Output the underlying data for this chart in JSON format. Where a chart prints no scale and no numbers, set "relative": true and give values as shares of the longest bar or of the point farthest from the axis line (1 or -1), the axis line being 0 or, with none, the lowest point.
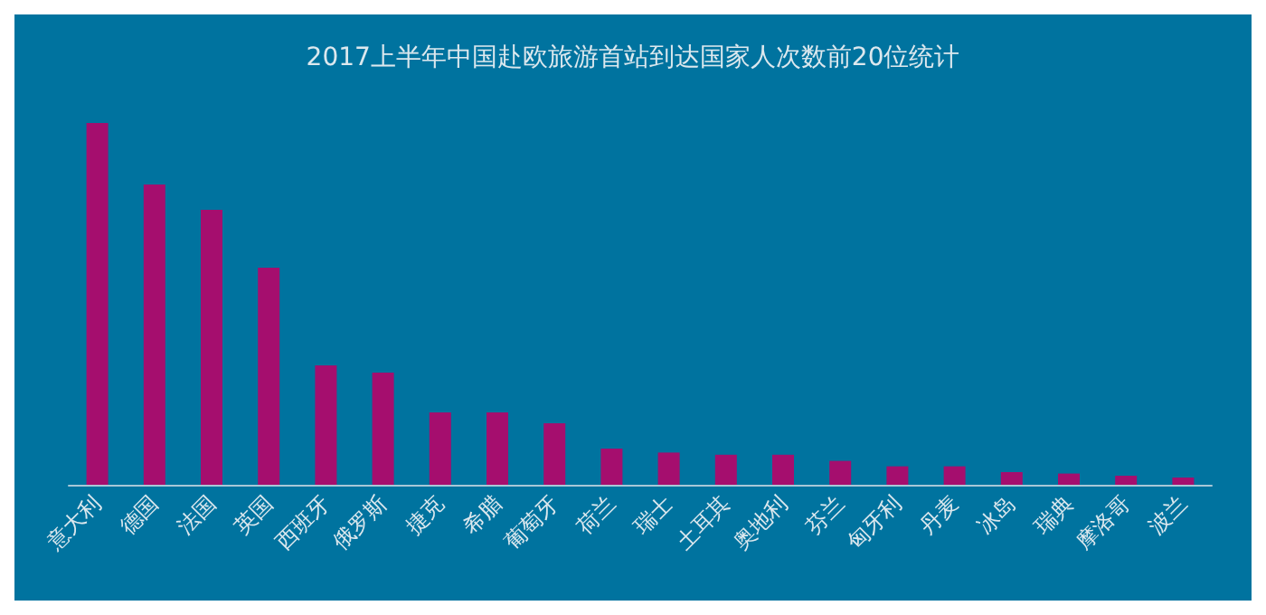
{
  "chart_data": {
    "type": "bar",
    "title": "2017上半年中国赴欧旅游首站到达国家人次数前20位统计",
    "relative": true,
    "categories": [
      "意大利",
      "德国",
      "法国",
      "英国",
      "西班牙",
      "俄罗斯",
      "捷克",
      "希腊",
      "葡萄牙",
      "荷兰",
      "瑞士",
      "土耳其",
      "奥地利",
      "芬兰",
      "匈牙利",
      "丹麦",
      "冰岛",
      "瑞典",
      "摩洛哥",
      "波兰"
    ],
    "values": [
      1,
      0.83,
      0.76,
      0.6,
      0.33,
      0.31,
      0.2,
      0.2,
      0.17,
      0.1,
      0.089,
      0.083,
      0.083,
      0.066,
      0.051,
      0.051,
      0.035,
      0.031,
      0.025,
      0.02
    ],
    "color": "#a50e6e",
    "grid": false
  }
}
